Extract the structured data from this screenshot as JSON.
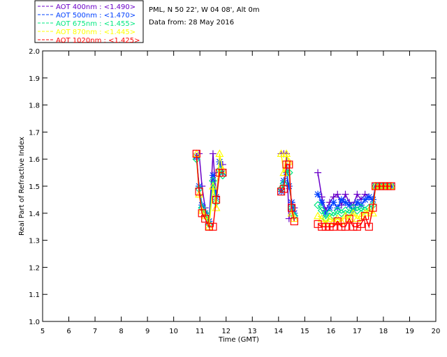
{
  "info": {
    "location": "PML, N 50 22', W 04 08', Alt 0m",
    "date": "Data from: 28 May 2016"
  },
  "chart_data": {
    "type": "line",
    "title": "",
    "xlabel": "Time (GMT)",
    "ylabel": "Real Part of Refractive Index",
    "xlim": [
      5,
      20
    ],
    "ylim": [
      1.0,
      2.0
    ],
    "xticks": [
      "5",
      "6",
      "7",
      "8",
      "9",
      "10",
      "11",
      "12",
      "13",
      "14",
      "15",
      "16",
      "17",
      "18",
      "19",
      "20"
    ],
    "yticks": [
      "1.0",
      "1.1",
      "1.2",
      "1.3",
      "1.4",
      "1.5",
      "1.6",
      "1.7",
      "1.8",
      "1.9",
      "2.0"
    ],
    "grid": false,
    "legend_position": "top-left outside",
    "x": [
      10.87,
      10.97,
      11.08,
      11.2,
      11.35,
      11.5,
      11.62,
      11.75,
      11.87,
      null,
      14.1,
      14.2,
      14.3,
      14.4,
      14.5,
      14.6,
      null,
      15.5,
      15.65,
      15.8,
      15.95,
      16.1,
      16.25,
      16.4,
      16.55,
      16.7,
      16.85,
      17.0,
      17.15,
      17.3,
      17.45,
      17.6,
      17.7,
      17.85,
      18.0,
      18.15,
      18.3
    ],
    "series": [
      {
        "name": "AOT  400nm : <1.490>",
        "color": "#6a00c8",
        "marker": "plus",
        "values": [
          1.6,
          1.62,
          1.5,
          1.42,
          1.37,
          1.62,
          1.46,
          1.55,
          1.58,
          null,
          1.62,
          1.62,
          1.62,
          1.38,
          1.44,
          1.42,
          null,
          1.55,
          1.46,
          1.41,
          1.44,
          1.46,
          1.47,
          1.43,
          1.47,
          1.44,
          1.43,
          1.47,
          1.45,
          1.47,
          1.46,
          1.45,
          1.5,
          1.5,
          1.5,
          1.5,
          1.5
        ]
      },
      {
        "name": "AOT  500nm : <1.470>",
        "color": "#0040ff",
        "marker": "asterisk",
        "values": [
          1.61,
          1.5,
          1.43,
          1.4,
          1.37,
          1.54,
          1.46,
          1.59,
          1.55,
          null,
          1.48,
          1.52,
          1.55,
          1.5,
          1.44,
          1.4,
          null,
          1.47,
          1.44,
          1.4,
          1.42,
          1.44,
          1.42,
          1.45,
          1.44,
          1.43,
          1.41,
          1.44,
          1.43,
          1.45,
          1.46,
          1.45,
          1.5,
          1.5,
          1.5,
          1.5,
          1.5
        ]
      },
      {
        "name": "AOT  675nm : <1.455>",
        "color": "#00e880",
        "marker": "diamond",
        "values": [
          1.6,
          1.49,
          1.42,
          1.4,
          1.36,
          1.52,
          1.44,
          1.56,
          1.54,
          null,
          1.49,
          1.51,
          1.56,
          1.55,
          1.42,
          1.39,
          null,
          1.43,
          1.41,
          1.38,
          1.4,
          1.39,
          1.41,
          1.4,
          1.41,
          1.4,
          1.42,
          1.41,
          1.42,
          1.41,
          1.42,
          1.43,
          1.5,
          1.5,
          1.5,
          1.5,
          1.5
        ]
      },
      {
        "name": "AOT  870nm : <1.445>",
        "color": "#ffff00",
        "marker": "triangle",
        "values": [
          1.62,
          1.47,
          1.41,
          1.39,
          1.35,
          1.5,
          1.42,
          1.62,
          1.56,
          null,
          1.62,
          1.55,
          1.62,
          1.59,
          1.4,
          1.38,
          null,
          1.39,
          1.38,
          1.36,
          1.38,
          1.37,
          1.38,
          1.37,
          1.39,
          1.38,
          1.4,
          1.38,
          1.39,
          1.4,
          1.41,
          1.4,
          1.5,
          1.5,
          1.5,
          1.5,
          1.5
        ]
      },
      {
        "name": "AOT 1020nm : <1.425>",
        "color": "#ff0000",
        "marker": "square",
        "values": [
          1.62,
          1.48,
          1.4,
          1.38,
          1.35,
          1.35,
          1.45,
          1.55,
          1.55,
          null,
          1.48,
          1.49,
          1.58,
          1.58,
          1.42,
          1.37,
          null,
          1.36,
          1.35,
          1.35,
          1.35,
          1.35,
          1.37,
          1.35,
          1.35,
          1.38,
          1.35,
          1.35,
          1.36,
          1.39,
          1.35,
          1.42,
          1.5,
          1.5,
          1.5,
          1.5,
          1.5
        ]
      }
    ]
  }
}
